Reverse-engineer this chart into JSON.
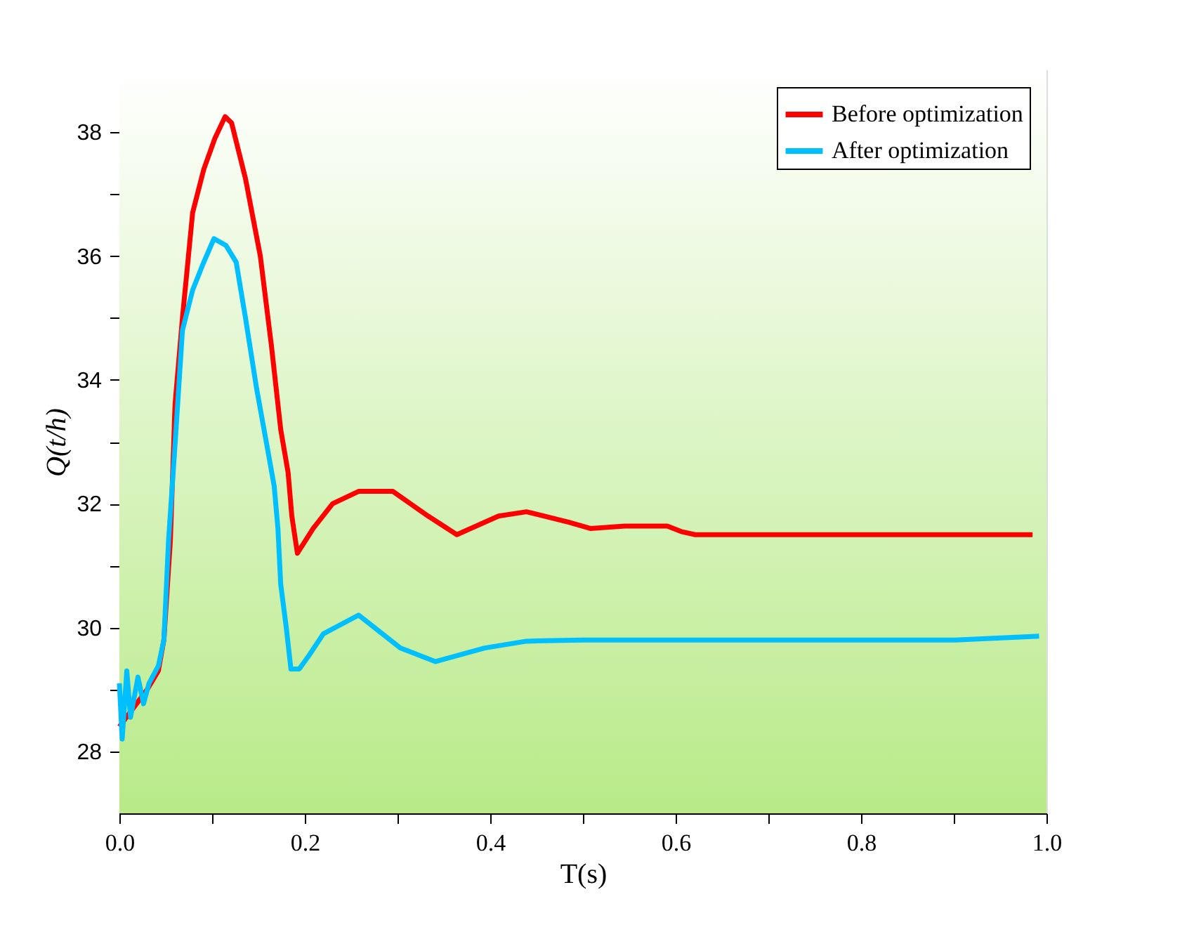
{
  "chart_data": {
    "type": "line",
    "xlabel": "T(s)",
    "ylabel": "Q(t/h)",
    "xlim": [
      0,
      1
    ],
    "ylim": [
      27,
      39
    ],
    "xticks": [
      {
        "value": 0,
        "label": "0.0"
      },
      {
        "value": 0.1,
        "label": null
      },
      {
        "value": 0.2,
        "label": "0.2"
      },
      {
        "value": 0.3,
        "label": null
      },
      {
        "value": 0.4,
        "label": "0.4"
      },
      {
        "value": 0.5,
        "label": null
      },
      {
        "value": 0.6,
        "label": "0.6"
      },
      {
        "value": 0.7,
        "label": null
      },
      {
        "value": 0.8,
        "label": "0.8"
      },
      {
        "value": 0.9,
        "label": null
      },
      {
        "value": 1,
        "label": "1.0"
      }
    ],
    "yticks": [
      28,
      {
        "value": 29,
        "label": null
      },
      30,
      {
        "value": 31,
        "label": null
      },
      32,
      {
        "value": 33,
        "label": null
      },
      34,
      {
        "value": 35,
        "label": null
      },
      36,
      {
        "value": 37,
        "label": null
      },
      38
    ],
    "legend": "top right",
    "line_style": "solid",
    "marker": "none",
    "series": [
      {
        "name": "Before optimization",
        "color": "#ff0000",
        "x": [
          0,
          0.015,
          0.03,
          0.042,
          0.048,
          0.055,
          0.06,
          0.068,
          0.079,
          0.091,
          0.103,
          0.114,
          0.121,
          0.136,
          0.152,
          0.164,
          0.174,
          0.182,
          0.186,
          0.192,
          0.209,
          0.23,
          0.258,
          0.295,
          0.333,
          0.364,
          0.409,
          0.439,
          0.485,
          0.508,
          0.545,
          0.591,
          0.606,
          0.621,
          0.985
        ],
        "values": [
          28.4,
          28.7,
          29.0,
          29.3,
          29.8,
          31.4,
          33.6,
          35.0,
          36.7,
          37.4,
          37.9,
          38.25,
          38.15,
          37.25,
          36.0,
          34.55,
          33.2,
          32.5,
          31.8,
          31.2,
          31.6,
          32.0,
          32.2,
          32.2,
          31.8,
          31.5,
          31.8,
          31.87,
          31.7,
          31.6,
          31.64,
          31.64,
          31.55,
          31.5,
          31.5
        ]
      },
      {
        "name": "After optimization",
        "color": "#00bfff",
        "x": [
          0,
          0.003,
          0.008,
          0.012,
          0.02,
          0.026,
          0.032,
          0.042,
          0.048,
          0.053,
          0.06,
          0.068,
          0.079,
          0.091,
          0.102,
          0.115,
          0.126,
          0.136,
          0.148,
          0.159,
          0.167,
          0.171,
          0.174,
          0.18,
          0.185,
          0.194,
          0.205,
          0.22,
          0.258,
          0.303,
          0.341,
          0.394,
          0.439,
          0.5,
          0.902,
          0.947,
          0.992
        ],
        "values": [
          29.1,
          28.2,
          29.3,
          28.55,
          29.2,
          28.77,
          29.1,
          29.38,
          29.8,
          31.4,
          32.95,
          34.8,
          35.45,
          35.9,
          36.28,
          36.17,
          35.9,
          35.0,
          33.86,
          32.95,
          32.28,
          31.6,
          30.7,
          30.0,
          29.33,
          29.33,
          29.56,
          29.9,
          30.2,
          29.67,
          29.45,
          29.67,
          29.78,
          29.8,
          29.8,
          29.83,
          29.86
        ]
      }
    ]
  }
}
